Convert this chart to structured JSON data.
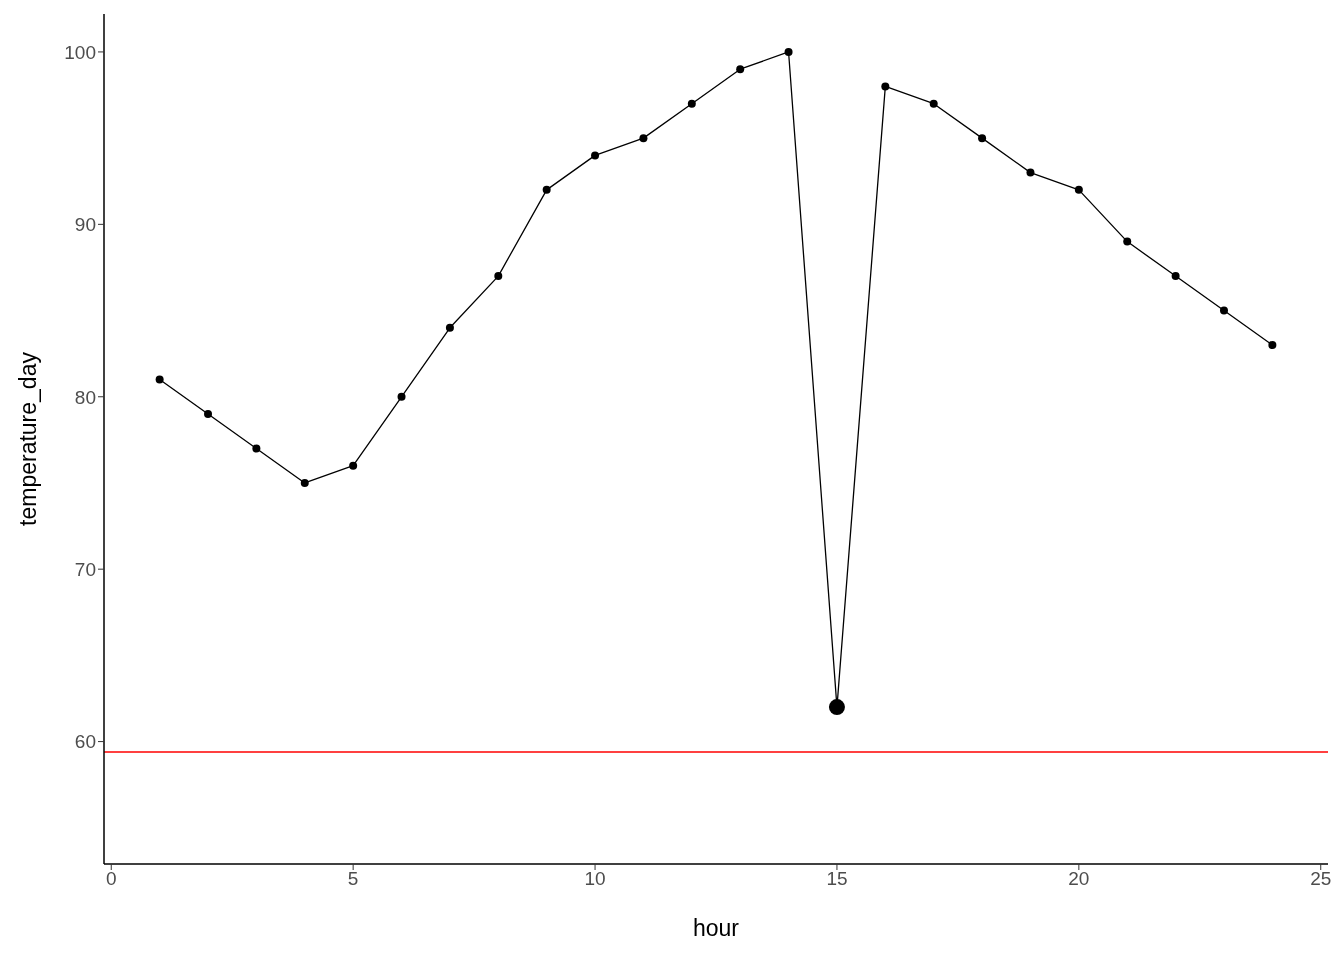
{
  "chart_data": {
    "type": "line",
    "xlabel": "hour",
    "ylabel": "temperature_day",
    "xlim": [
      -0.15,
      25.15
    ],
    "xticks": [
      0,
      5,
      10,
      15,
      20,
      25
    ],
    "ylim": [
      52.9,
      102.2
    ],
    "yticks": [
      60,
      70,
      80,
      90,
      100
    ],
    "grid": false,
    "legend": false,
    "marker": "circle",
    "line_style": "solid",
    "series": [
      {
        "color": "#000000",
        "x": [
          1,
          2,
          3,
          4,
          5,
          6,
          7,
          8,
          9,
          10,
          11,
          12,
          13,
          14,
          15,
          16,
          17,
          18,
          19,
          20,
          21,
          22,
          23,
          24
        ],
        "values": [
          81,
          79,
          77,
          75,
          76,
          80,
          84,
          87,
          92,
          94,
          95,
          97,
          99,
          100,
          62,
          98,
          97,
          95,
          93,
          92,
          89,
          87,
          85,
          83
        ]
      },
      {
        "type": "scatter",
        "color": "#000000",
        "x": [
          15
        ],
        "values": [
          62
        ]
      }
    ],
    "ref_lines": [
      {
        "axis": "y",
        "value": 59.4,
        "color": "#ff0000"
      }
    ]
  }
}
